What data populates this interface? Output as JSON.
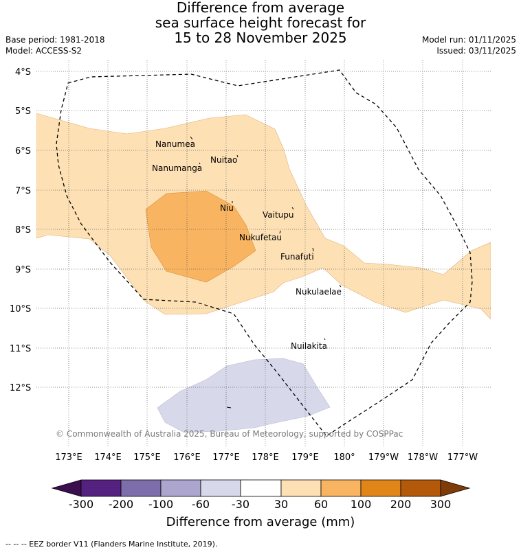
{
  "title": {
    "line1": "Difference from average",
    "line2": "sea surface height forecast for",
    "line3": "15 to 28 November 2025"
  },
  "meta_left": {
    "base_period": "Base period: 1981-2018",
    "model": "Model: ACCESS-S2"
  },
  "meta_right": {
    "model_run": "Model run: 01/11/2025",
    "issued": "Issued: 03/11/2025"
  },
  "map": {
    "lat_labels": [
      "4°S",
      "5°S",
      "6°S",
      "7°S",
      "8°S",
      "9°S",
      "10°S",
      "11°S",
      "12°S"
    ],
    "lon_labels": [
      "173°E",
      "174°E",
      "175°E",
      "176°E",
      "177°E",
      "178°E",
      "179°E",
      "180°",
      "179°W",
      "178°W",
      "177°W"
    ],
    "places": {
      "nanumea": "Nanumea",
      "nuitao": "Nuitao",
      "nanumanga": "Nanumanga",
      "niu": "Niu",
      "vaitupu": "Vaitupu",
      "nukufetau": "Nukufetau",
      "funafuti": "Funafuti",
      "nukulaelae": "Nukulaelae",
      "nuilakita": "Nuilakita"
    },
    "copyright": "© Commonwealth of Australia 2025, Bureau of Meteorology, supported by COSPPac"
  },
  "colorbar": {
    "labels": [
      "-300",
      "-200",
      "-100",
      "-60",
      "-30",
      "30",
      "60",
      "100",
      "200",
      "300"
    ],
    "colors": [
      "#3b0f4e",
      "#552180",
      "#7e6dab",
      "#aca6cf",
      "#d7d8ea",
      "#ffffff",
      "#fde0b4",
      "#f9b461",
      "#e28519",
      "#b45909",
      "#7f3b08"
    ],
    "title": "Difference from average (mm)"
  },
  "footnote": "--  --  -- EEZ border V11 (Flanders Marine Institute, 2019)."
}
